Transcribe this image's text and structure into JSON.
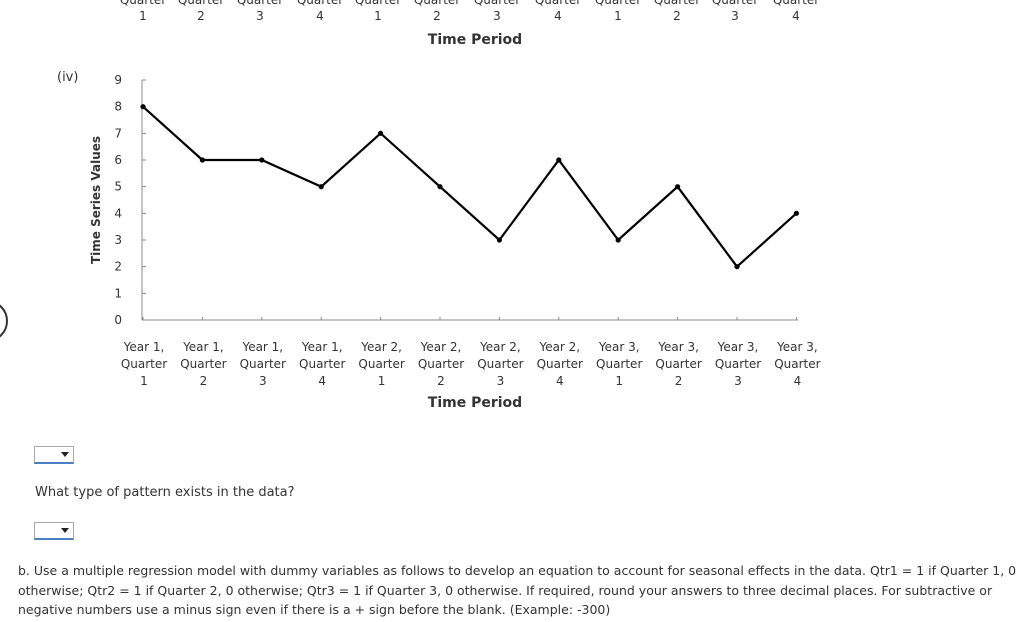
{
  "option_label": "(iv)",
  "top_axis": {
    "labels": [
      {
        "top": "Quarter",
        "num": "1"
      },
      {
        "top": "Quarter",
        "num": "2"
      },
      {
        "top": "Quarter",
        "num": "3"
      },
      {
        "top": "Quarter",
        "num": "4"
      },
      {
        "top": "Quarter",
        "num": "1"
      },
      {
        "top": "Quarter",
        "num": "2"
      },
      {
        "top": "Quarter",
        "num": "3"
      },
      {
        "top": "Quarter",
        "num": "4"
      },
      {
        "top": "Quarter",
        "num": "1"
      },
      {
        "top": "Quarter",
        "num": "2"
      },
      {
        "top": "Quarter",
        "num": "3"
      },
      {
        "top": "Quarter",
        "num": "4"
      }
    ],
    "xlabel": "Time Period"
  },
  "chart_data": {
    "type": "line",
    "title": "",
    "ylabel": "Time Series Values",
    "xlabel": "Time Period",
    "ylim": [
      0,
      9
    ],
    "yticks": [
      0,
      1,
      2,
      3,
      4,
      5,
      6,
      7,
      8,
      9
    ],
    "categories": [
      [
        "Year 1,",
        "Quarter",
        "1"
      ],
      [
        "Year 1,",
        "Quarter",
        "2"
      ],
      [
        "Year 1,",
        "Quarter",
        "3"
      ],
      [
        "Year 1,",
        "Quarter",
        "4"
      ],
      [
        "Year 2,",
        "Quarter",
        "1"
      ],
      [
        "Year 2,",
        "Quarter",
        "2"
      ],
      [
        "Year 2,",
        "Quarter",
        "3"
      ],
      [
        "Year 2,",
        "Quarter",
        "4"
      ],
      [
        "Year 3,",
        "Quarter",
        "1"
      ],
      [
        "Year 3,",
        "Quarter",
        "2"
      ],
      [
        "Year 3,",
        "Quarter",
        "3"
      ],
      [
        "Year 3,",
        "Quarter",
        "4"
      ]
    ],
    "values": [
      8,
      6,
      6,
      5,
      7,
      5,
      3,
      6,
      3,
      5,
      2,
      4
    ],
    "line_color": "#000000",
    "grid": false
  },
  "question": "What type of pattern exists in the data?",
  "part_b": "b. Use a multiple regression model with dummy variables as follows to develop an equation to account for seasonal effects in the data. Qtr1 = 1 if Quarter 1, 0 otherwise; Qtr2 = 1 if Quarter 2, 0 otherwise; Qtr3 = 1 if Quarter 3, 0 otherwise. If required, round your answers to three decimal places. For subtractive or negative numbers use a minus sign even if there is a + sign before the blank. (Example: -300)"
}
